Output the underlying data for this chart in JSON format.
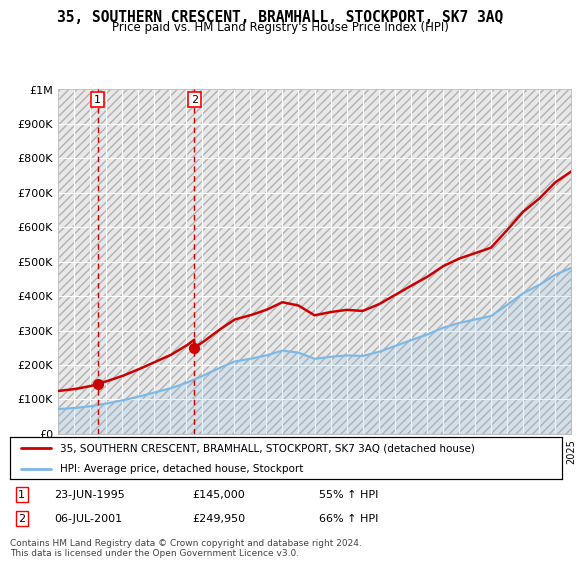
{
  "title": "35, SOUTHERN CRESCENT, BRAMHALL, STOCKPORT, SK7 3AQ",
  "subtitle": "Price paid vs. HM Land Registry's House Price Index (HPI)",
  "legend_line1": "35, SOUTHERN CRESCENT, BRAMHALL, STOCKPORT, SK7 3AQ (detached house)",
  "legend_line2": "HPI: Average price, detached house, Stockport",
  "transaction1_date": "23-JUN-1995",
  "transaction1_price": 145000,
  "transaction1_hpi": "55% ↑ HPI",
  "transaction2_date": "06-JUL-2001",
  "transaction2_price": 249950,
  "transaction2_hpi": "66% ↑ HPI",
  "footer": "Contains HM Land Registry data © Crown copyright and database right 2024.\nThis data is licensed under the Open Government Licence v3.0.",
  "hpi_color": "#7ab8e8",
  "price_color": "#cc0000",
  "marker_color": "#cc0000",
  "dashed_line_color": "#cc0000",
  "ylim_max": 1000000,
  "ylim_min": 0,
  "xlim_min": 1993,
  "xlim_max": 2025,
  "hpi_years": [
    1993,
    1994,
    1995,
    1996,
    1997,
    1998,
    1999,
    2000,
    2001,
    2002,
    2003,
    2004,
    2005,
    2006,
    2007,
    2008,
    2009,
    2010,
    2011,
    2012,
    2013,
    2014,
    2015,
    2016,
    2017,
    2018,
    2019,
    2020,
    2021,
    2022,
    2023,
    2024,
    2025
  ],
  "hpi_values": [
    72000,
    75000,
    80000,
    88000,
    97000,
    108000,
    120000,
    132000,
    148000,
    168000,
    190000,
    210000,
    218000,
    228000,
    242000,
    236000,
    218000,
    224000,
    228000,
    226000,
    238000,
    255000,
    272000,
    288000,
    308000,
    322000,
    332000,
    342000,
    374000,
    408000,
    432000,
    462000,
    482000
  ],
  "transaction1_x": 1995.478,
  "transaction2_x": 2001.512
}
